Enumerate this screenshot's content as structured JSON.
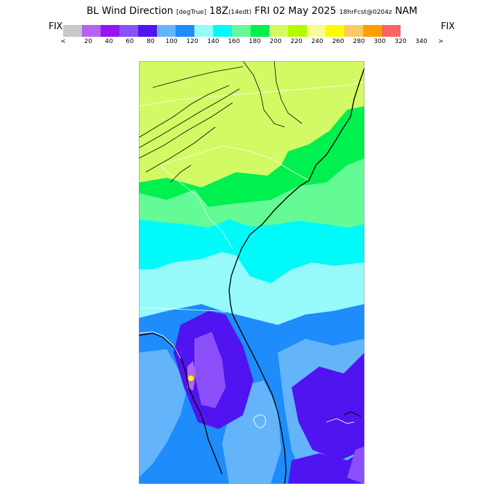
{
  "header": {
    "variable": "BL Wind Direction",
    "units": "[degTrue]",
    "valid_time": "18Z",
    "local_time": "(14edt)",
    "date": "FRI 02 May 2025",
    "forecast": "18hrFcst@0204z",
    "model": "NAM"
  },
  "scale": {
    "fix_left": "FIX",
    "fix_right": "FIX",
    "colors": [
      "#c8c8c8",
      "#b464f0",
      "#9614f0",
      "#8c50fa",
      "#5014f0",
      "#64b4fa",
      "#1e8cfa",
      "#96fafa",
      "#00fafa",
      "#64fa96",
      "#00f050",
      "#d2fa64",
      "#b4fa00",
      "#fafa96",
      "#fafa00",
      "#fac864",
      "#faa000",
      "#fa6464"
    ],
    "tick_labels": [
      "<",
      "20",
      "40",
      "60",
      "80",
      "100",
      "120",
      "140",
      "160",
      "180",
      "200",
      "220",
      "240",
      "260",
      "280",
      "300",
      "320",
      "340",
      ">"
    ]
  }
}
